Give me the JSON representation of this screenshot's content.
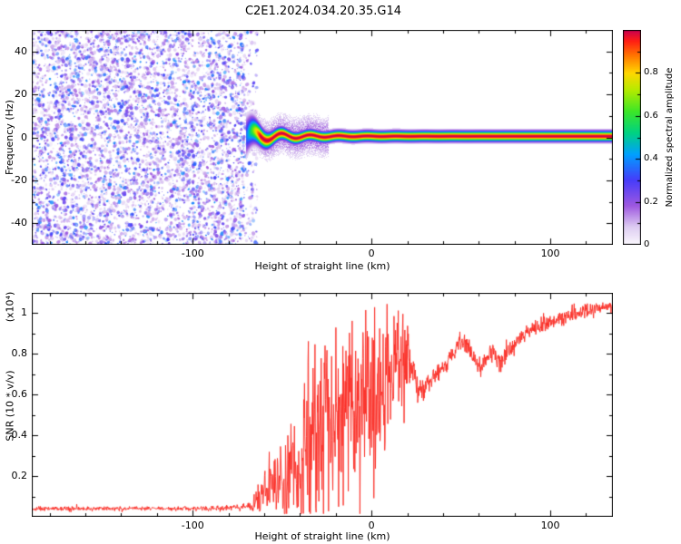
{
  "figure": {
    "title": "C2E1.2024.034.20.35.G14",
    "background": "#ffffff",
    "frame_color": "#000000"
  },
  "chart_data": [
    {
      "type": "heatmap",
      "title": "C2E1.2024.034.20.35.G14",
      "xlabel": "Height of straight line (km)",
      "ylabel": "Frequency (Hz)",
      "xlim": [
        -190,
        135
      ],
      "ylim": [
        -50,
        50
      ],
      "xticks": [
        [
          -100,
          "-100"
        ],
        [
          0,
          "0"
        ],
        [
          100,
          "100"
        ]
      ],
      "xtick_minor_step": 20,
      "yticks": [
        [
          -40,
          "-40"
        ],
        [
          -20,
          "-20"
        ],
        [
          0,
          "0"
        ],
        [
          20,
          "20"
        ],
        [
          40,
          "40"
        ]
      ],
      "ytick_minor_step": 10,
      "colorbar": {
        "label": "Normalized spectral amplitude",
        "range": [
          0,
          1
        ],
        "ticks": [
          [
            0,
            "0"
          ],
          [
            0.2,
            "0.2"
          ],
          [
            0.4,
            "0.4"
          ],
          [
            0.6,
            "0.6"
          ],
          [
            0.8,
            "0.8"
          ]
        ],
        "minor_step": 0.1
      },
      "colormap_stops": [
        [
          0.0,
          [
            250,
            247,
            253
          ]
        ],
        [
          0.08,
          [
            222,
            205,
            242
          ]
        ],
        [
          0.18,
          [
            158,
            88,
            224
          ]
        ],
        [
          0.3,
          [
            70,
            60,
            250
          ]
        ],
        [
          0.42,
          [
            0,
            160,
            255
          ]
        ],
        [
          0.52,
          [
            0,
            210,
            130
          ]
        ],
        [
          0.62,
          [
            60,
            230,
            40
          ]
        ],
        [
          0.72,
          [
            180,
            235,
            0
          ]
        ],
        [
          0.8,
          [
            255,
            215,
            0
          ]
        ],
        [
          0.88,
          [
            255,
            120,
            0
          ]
        ],
        [
          0.95,
          [
            255,
            30,
            20
          ]
        ],
        [
          1.0,
          [
            200,
            0,
            80
          ]
        ]
      ],
      "noise": {
        "x_max_km": -71,
        "density": 5500,
        "t_max": 0.33
      },
      "signal": {
        "x_start_km": -70,
        "center_hz": 0.5,
        "wiggle_amp_hz": 3.4,
        "wiggle_period_km": 16,
        "wiggle_decay_km": 22,
        "sigma_hz": 1.5,
        "start_sigma_boost_hz": 4,
        "start_sigma_decay_km": 7,
        "haze_sigma_hz": 6,
        "haze_amp": 0.16,
        "haze_x_end_km": -24
      }
    },
    {
      "type": "line",
      "series_color": "#fb2b24",
      "xlabel": "Height of straight line (km)",
      "ylabel": "SNR (10 * v/v)",
      "y_scale_note": "(x10⁴)",
      "xlim": [
        -190,
        135
      ],
      "ylim": [
        0,
        1.1
      ],
      "xticks": [
        [
          -100,
          "-100"
        ],
        [
          0,
          "0"
        ],
        [
          100,
          "100"
        ]
      ],
      "xtick_minor_step": 20,
      "yticks": [
        [
          0.2,
          "0.2"
        ],
        [
          0.4,
          "0.4"
        ],
        [
          0.6,
          "0.6"
        ],
        [
          0.8,
          "0.8"
        ],
        [
          1.0,
          "1"
        ]
      ],
      "ytick_minor_step": 0.1,
      "envelope": [
        [
          -190,
          0.04,
          0.008
        ],
        [
          -120,
          0.04,
          0.008
        ],
        [
          -90,
          0.042,
          0.01
        ],
        [
          -75,
          0.045,
          0.012
        ],
        [
          -68,
          0.05,
          0.02
        ],
        [
          -64,
          0.08,
          0.06
        ],
        [
          -60,
          0.1,
          0.09
        ],
        [
          -57,
          0.16,
          0.14
        ],
        [
          -54,
          0.13,
          0.11
        ],
        [
          -50,
          0.22,
          0.2
        ],
        [
          -47,
          0.18,
          0.16
        ],
        [
          -44,
          0.28,
          0.24
        ],
        [
          -41,
          0.24,
          0.2
        ],
        [
          -38,
          0.35,
          0.28
        ],
        [
          -35,
          0.32,
          0.26
        ],
        [
          -32,
          0.42,
          0.32
        ],
        [
          -29,
          0.38,
          0.3
        ],
        [
          -26,
          0.46,
          0.34
        ],
        [
          -23,
          0.42,
          0.32
        ],
        [
          -20,
          0.5,
          0.36
        ],
        [
          -17,
          0.46,
          0.34
        ],
        [
          -14,
          0.55,
          0.38
        ],
        [
          -11,
          0.5,
          0.36
        ],
        [
          -8,
          0.58,
          0.36
        ],
        [
          -5,
          0.55,
          0.34
        ],
        [
          -2,
          0.62,
          0.34
        ],
        [
          1,
          0.58,
          0.32
        ],
        [
          4,
          0.66,
          0.32
        ],
        [
          7,
          0.62,
          0.3
        ],
        [
          10,
          0.72,
          0.28
        ],
        [
          13,
          0.68,
          0.26
        ],
        [
          16,
          0.8,
          0.24
        ],
        [
          19,
          0.85,
          0.18
        ],
        [
          22,
          0.78,
          0.12
        ],
        [
          25,
          0.64,
          0.06
        ],
        [
          28,
          0.61,
          0.045
        ],
        [
          32,
          0.66,
          0.04
        ],
        [
          36,
          0.7,
          0.04
        ],
        [
          40,
          0.73,
          0.035
        ],
        [
          44,
          0.78,
          0.035
        ],
        [
          48,
          0.84,
          0.03
        ],
        [
          52,
          0.86,
          0.035
        ],
        [
          56,
          0.8,
          0.04
        ],
        [
          60,
          0.73,
          0.04
        ],
        [
          64,
          0.77,
          0.04
        ],
        [
          68,
          0.81,
          0.035
        ],
        [
          72,
          0.75,
          0.04
        ],
        [
          76,
          0.8,
          0.035
        ],
        [
          80,
          0.85,
          0.03
        ],
        [
          85,
          0.89,
          0.03
        ],
        [
          90,
          0.92,
          0.03
        ],
        [
          95,
          0.94,
          0.03
        ],
        [
          100,
          0.96,
          0.03
        ],
        [
          105,
          0.97,
          0.03
        ],
        [
          110,
          0.99,
          0.03
        ],
        [
          115,
          1.0,
          0.03
        ],
        [
          120,
          1.01,
          0.03
        ],
        [
          125,
          1.02,
          0.025
        ],
        [
          130,
          1.03,
          0.025
        ]
      ]
    }
  ]
}
